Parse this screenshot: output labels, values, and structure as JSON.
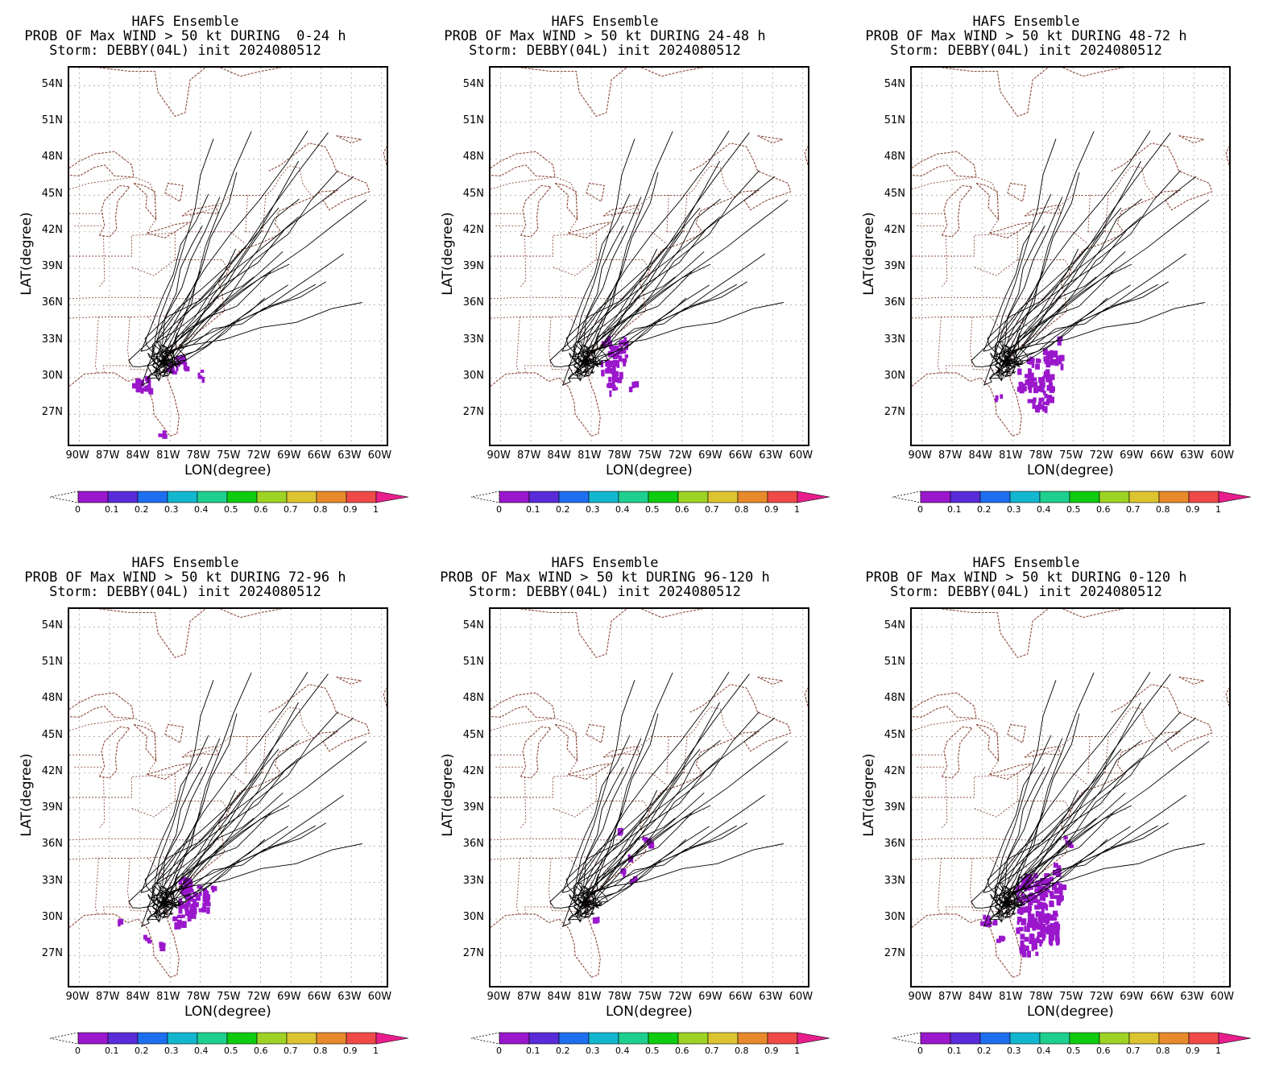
{
  "panels": [
    {
      "title1": "HAFS Ensemble",
      "title2": "PROB OF Max WIND > 50 kt DURING  0-24 h",
      "title3": "Storm: DEBBY(04L) init 2024080512",
      "xlabel": "LON(degree)",
      "ylabel": "LAT(degree)"
    },
    {
      "title1": "HAFS Ensemble",
      "title2": "PROB OF Max WIND > 50 kt DURING 24-48 h",
      "title3": "Storm: DEBBY(04L) init 2024080512",
      "xlabel": "LON(degree)",
      "ylabel": "LAT(degree)"
    },
    {
      "title1": "HAFS Ensemble",
      "title2": "PROB OF Max WIND > 50 kt DURING 48-72 h",
      "title3": "Storm: DEBBY(04L) init 2024080512",
      "xlabel": "LON(degree)",
      "ylabel": "LAT(degree)"
    },
    {
      "title1": "HAFS Ensemble",
      "title2": "PROB OF Max WIND > 50 kt DURING 72-96 h",
      "title3": "Storm: DEBBY(04L) init 2024080512",
      "xlabel": "LON(degree)",
      "ylabel": "LAT(degree)"
    },
    {
      "title1": "HAFS Ensemble",
      "title2": "PROB OF Max WIND > 50 kt DURING 96-120 h",
      "title3": "Storm: DEBBY(04L) init 2024080512",
      "xlabel": "LON(degree)",
      "ylabel": "LAT(degree)"
    },
    {
      "title1": "HAFS Ensemble",
      "title2": "PROB OF Max WIND > 50 kt DURING 0-120 h",
      "title3": "Storm: DEBBY(04L) init 2024080512",
      "xlabel": "LON(degree)",
      "ylabel": "LAT(degree)"
    }
  ],
  "lat_ticks": [
    "27N",
    "30N",
    "33N",
    "36N",
    "39N",
    "42N",
    "45N",
    "48N",
    "51N",
    "54N"
  ],
  "lon_ticks": [
    "90W",
    "87W",
    "84W",
    "81W",
    "78W",
    "75W",
    "72W",
    "69W",
    "66W",
    "63W",
    "60W"
  ],
  "colorbar": {
    "labels": [
      "0",
      "0.1",
      "0.2",
      "0.3",
      "0.4",
      "0.5",
      "0.6",
      "0.7",
      "0.8",
      "0.9",
      "1"
    ],
    "colors": [
      "#9a17cc",
      "#5a2bd8",
      "#1e6ff0",
      "#12b7cf",
      "#1fcf8f",
      "#10cc10",
      "#9ed224",
      "#dcc430",
      "#e88a2c",
      "#ef4a48",
      "#e81e8c"
    ]
  },
  "map_colors": {
    "coast": "#8b4a3a",
    "track": "#000000",
    "prob": "#9a17cc",
    "grid": "#9a9a9a"
  }
}
